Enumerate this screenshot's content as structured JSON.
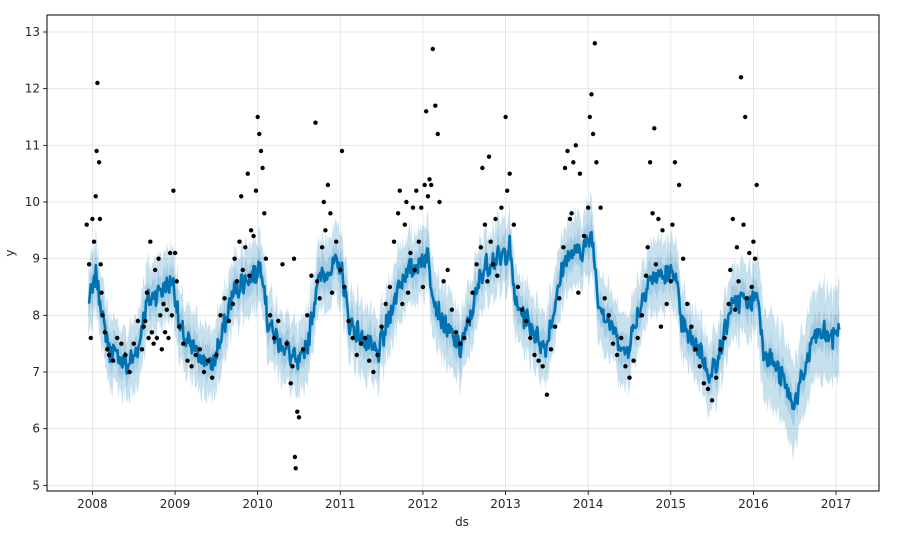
{
  "chart_data": {
    "type": "line",
    "title": "",
    "xlabel": "ds",
    "ylabel": "y",
    "xlim": [
      2007.45,
      2017.52
    ],
    "ylim": [
      4.9,
      13.3
    ],
    "grid": true,
    "x_ticks": [
      2008,
      2009,
      2010,
      2011,
      2012,
      2013,
      2014,
      2015,
      2016,
      2017
    ],
    "x_tick_labels": [
      "2008",
      "2009",
      "2010",
      "2011",
      "2012",
      "2013",
      "2014",
      "2015",
      "2016",
      "2017"
    ],
    "y_ticks": [
      5,
      6,
      7,
      8,
      9,
      10,
      11,
      12,
      13
    ],
    "y_tick_labels": [
      "5",
      "6",
      "7",
      "8",
      "9",
      "10",
      "11",
      "12",
      "13"
    ],
    "colors": {
      "forecast": "#0072b2",
      "interval": "#0072b2",
      "observed": "#000000",
      "frame": "#000000",
      "grid": "#b0b0b0"
    },
    "series": [
      {
        "kind": "forecast_line",
        "x": [
          2007.95,
          2008.05,
          2008.12,
          2008.2,
          2008.3,
          2008.42,
          2008.55,
          2008.65,
          2008.78,
          2008.88,
          2008.98,
          2009.05,
          2009.15,
          2009.3,
          2009.45,
          2009.58,
          2009.7,
          2009.82,
          2009.95,
          2010.05,
          2010.12,
          2010.22,
          2010.35,
          2010.5,
          2010.62,
          2010.72,
          2010.85,
          2010.95,
          2011.02,
          2011.1,
          2011.2,
          2011.32,
          2011.45,
          2011.58,
          2011.72,
          2011.85,
          2011.95,
          2012.05,
          2012.12,
          2012.2,
          2012.32,
          2012.45,
          2012.58,
          2012.72,
          2012.85,
          2012.95,
          2013.05,
          2013.12,
          2013.22,
          2013.35,
          2013.48,
          2013.6,
          2013.72,
          2013.85,
          2013.95,
          2014.05,
          2014.12,
          2014.2,
          2014.32,
          2014.45,
          2014.58,
          2014.72,
          2014.85,
          2014.95,
          2015.05,
          2015.12,
          2015.22,
          2015.35,
          2015.48,
          2015.6,
          2015.72,
          2015.85,
          2015.95,
          2016.05,
          2016.12,
          2016.22,
          2016.35,
          2016.48,
          2016.6,
          2016.72,
          2016.85,
          2016.95,
          2017.04
        ],
        "y": [
          8.2,
          8.7,
          8.0,
          7.4,
          7.3,
          7.1,
          7.4,
          8.2,
          8.4,
          8.5,
          8.6,
          7.8,
          7.5,
          7.3,
          7.1,
          7.7,
          8.4,
          8.6,
          8.7,
          8.9,
          7.9,
          7.6,
          7.4,
          7.1,
          7.6,
          8.6,
          8.8,
          8.9,
          8.8,
          7.9,
          7.7,
          7.5,
          7.3,
          7.9,
          8.6,
          8.8,
          8.9,
          9.1,
          8.4,
          8.0,
          7.7,
          7.4,
          8.0,
          8.8,
          9.0,
          9.0,
          9.2,
          8.2,
          8.0,
          7.7,
          7.4,
          8.2,
          9.0,
          9.1,
          9.2,
          9.4,
          8.3,
          8.0,
          7.7,
          7.3,
          7.9,
          8.6,
          8.7,
          8.7,
          8.8,
          7.9,
          7.6,
          7.4,
          6.9,
          7.4,
          8.1,
          8.3,
          8.2,
          8.4,
          7.4,
          7.2,
          6.9,
          6.4,
          6.9,
          7.6,
          7.7,
          7.6,
          7.8
        ]
      },
      {
        "kind": "observed_points",
        "x": [
          2007.93,
          2007.96,
          2007.98,
          2008.0,
          2008.02,
          2008.04,
          2008.05,
          2008.06,
          2008.08,
          2008.09,
          2008.1,
          2008.11,
          2008.12,
          2008.15,
          2008.18,
          2008.2,
          2008.25,
          2008.3,
          2008.35,
          2008.4,
          2008.45,
          2008.5,
          2008.55,
          2008.6,
          2008.62,
          2008.64,
          2008.66,
          2008.68,
          2008.7,
          2008.72,
          2008.74,
          2008.76,
          2008.78,
          2008.8,
          2008.82,
          2008.84,
          2008.86,
          2008.88,
          2008.9,
          2008.92,
          2008.94,
          2008.96,
          2008.98,
          2009.0,
          2009.02,
          2009.05,
          2009.1,
          2009.15,
          2009.2,
          2009.25,
          2009.3,
          2009.35,
          2009.4,
          2009.45,
          2009.5,
          2009.55,
          2009.6,
          2009.65,
          2009.7,
          2009.72,
          2009.75,
          2009.78,
          2009.8,
          2009.82,
          2009.85,
          2009.88,
          2009.9,
          2009.92,
          2009.95,
          2009.98,
          2010.0,
          2010.02,
          2010.04,
          2010.06,
          2010.08,
          2010.1,
          2010.15,
          2010.2,
          2010.25,
          2010.3,
          2010.35,
          2010.4,
          2010.42,
          2010.44,
          2010.45,
          2010.46,
          2010.48,
          2010.5,
          2010.55,
          2010.6,
          2010.65,
          2010.7,
          2010.72,
          2010.75,
          2010.78,
          2010.8,
          2010.82,
          2010.85,
          2010.88,
          2010.9,
          2010.95,
          2011.0,
          2011.02,
          2011.05,
          2011.1,
          2011.15,
          2011.2,
          2011.25,
          2011.3,
          2011.35,
          2011.4,
          2011.45,
          2011.5,
          2011.55,
          2011.6,
          2011.65,
          2011.7,
          2011.72,
          2011.75,
          2011.78,
          2011.8,
          2011.82,
          2011.85,
          2011.88,
          2011.9,
          2011.92,
          2011.95,
          2011.98,
          2012.0,
          2012.02,
          2012.04,
          2012.06,
          2012.08,
          2012.1,
          2012.12,
          2012.15,
          2012.18,
          2012.2,
          2012.25,
          2012.3,
          2012.35,
          2012.4,
          2012.45,
          2012.5,
          2012.55,
          2012.6,
          2012.65,
          2012.7,
          2012.72,
          2012.75,
          2012.78,
          2012.8,
          2012.82,
          2012.85,
          2012.88,
          2012.9,
          2012.95,
          2013.0,
          2013.02,
          2013.05,
          2013.1,
          2013.15,
          2013.2,
          2013.25,
          2013.3,
          2013.35,
          2013.4,
          2013.45,
          2013.5,
          2013.55,
          2013.6,
          2013.65,
          2013.7,
          2013.72,
          2013.75,
          2013.78,
          2013.8,
          2013.82,
          2013.85,
          2013.88,
          2013.9,
          2013.95,
          2014.0,
          2014.02,
          2014.04,
          2014.06,
          2014.08,
          2014.1,
          2014.15,
          2014.2,
          2014.25,
          2014.3,
          2014.35,
          2014.4,
          2014.45,
          2014.5,
          2014.55,
          2014.6,
          2014.65,
          2014.7,
          2014.72,
          2014.75,
          2014.78,
          2014.8,
          2014.82,
          2014.85,
          2014.88,
          2014.9,
          2014.95,
          2015.0,
          2015.02,
          2015.05,
          2015.1,
          2015.15,
          2015.2,
          2015.25,
          2015.3,
          2015.35,
          2015.4,
          2015.45,
          2015.5,
          2015.55,
          2015.6,
          2015.65,
          2015.7,
          2015.72,
          2015.75,
          2015.78,
          2015.8,
          2015.82,
          2015.85,
          2015.88,
          2015.9,
          2015.92,
          2015.95,
          2015.98,
          2016.0,
          2016.02,
          2016.04
        ],
        "y": [
          9.6,
          8.9,
          7.6,
          9.7,
          9.3,
          10.1,
          10.9,
          12.1,
          10.7,
          9.7,
          8.9,
          8.4,
          8.0,
          7.7,
          7.4,
          7.3,
          7.2,
          7.6,
          7.5,
          7.3,
          7.0,
          7.5,
          7.9,
          7.4,
          7.8,
          7.9,
          8.4,
          7.6,
          9.3,
          7.7,
          7.5,
          8.8,
          7.6,
          9.0,
          8.0,
          7.4,
          8.2,
          7.7,
          8.1,
          7.6,
          9.1,
          8.0,
          10.2,
          9.1,
          8.6,
          7.8,
          7.5,
          7.2,
          7.1,
          7.3,
          7.4,
          7.0,
          7.2,
          6.9,
          7.3,
          8.0,
          8.3,
          7.9,
          8.2,
          9.0,
          8.6,
          9.3,
          10.1,
          8.8,
          9.2,
          10.5,
          8.7,
          9.5,
          9.4,
          10.2,
          11.5,
          11.2,
          10.9,
          10.6,
          9.8,
          9.0,
          8.0,
          7.6,
          7.9,
          8.9,
          7.5,
          6.8,
          7.1,
          9.0,
          5.5,
          5.3,
          6.3,
          6.2,
          7.4,
          8.0,
          8.7,
          11.4,
          8.6,
          8.3,
          9.2,
          10.0,
          9.5,
          10.3,
          9.8,
          8.4,
          9.3,
          8.8,
          10.9,
          8.5,
          7.9,
          7.6,
          7.3,
          7.5,
          7.6,
          7.2,
          7.0,
          7.3,
          7.8,
          8.2,
          8.5,
          9.3,
          9.8,
          10.2,
          8.2,
          9.6,
          10.0,
          8.4,
          9.1,
          9.9,
          8.8,
          10.2,
          9.3,
          9.9,
          8.5,
          10.3,
          11.6,
          10.1,
          10.4,
          10.3,
          12.7,
          11.7,
          11.2,
          10.0,
          8.6,
          8.8,
          8.1,
          7.7,
          7.5,
          7.6,
          7.9,
          8.4,
          8.9,
          9.2,
          10.6,
          9.6,
          8.6,
          10.8,
          9.3,
          8.9,
          9.7,
          8.7,
          9.9,
          11.5,
          10.2,
          10.5,
          9.6,
          8.5,
          8.1,
          7.9,
          7.6,
          7.3,
          7.2,
          7.1,
          6.6,
          7.4,
          7.8,
          8.3,
          9.2,
          10.6,
          10.9,
          9.7,
          9.8,
          10.7,
          11.0,
          8.4,
          10.5,
          9.4,
          9.9,
          11.5,
          11.9,
          11.2,
          12.8,
          10.7,
          9.9,
          8.3,
          8.0,
          7.5,
          7.3,
          7.6,
          7.1,
          6.9,
          7.2,
          7.6,
          8.0,
          8.7,
          9.2,
          10.7,
          9.8,
          11.3,
          8.9,
          9.7,
          7.8,
          9.5,
          8.2,
          8.6,
          9.6,
          10.7,
          10.3,
          9.0,
          8.2,
          7.8,
          7.4,
          7.1,
          6.8,
          6.7,
          6.5,
          6.9,
          7.4,
          7.6,
          8.2,
          8.8,
          9.7,
          8.1,
          9.2,
          8.6,
          12.2,
          9.6,
          11.5,
          8.3,
          9.1,
          8.5,
          9.3,
          9.0,
          10.3
        ]
      }
    ]
  }
}
